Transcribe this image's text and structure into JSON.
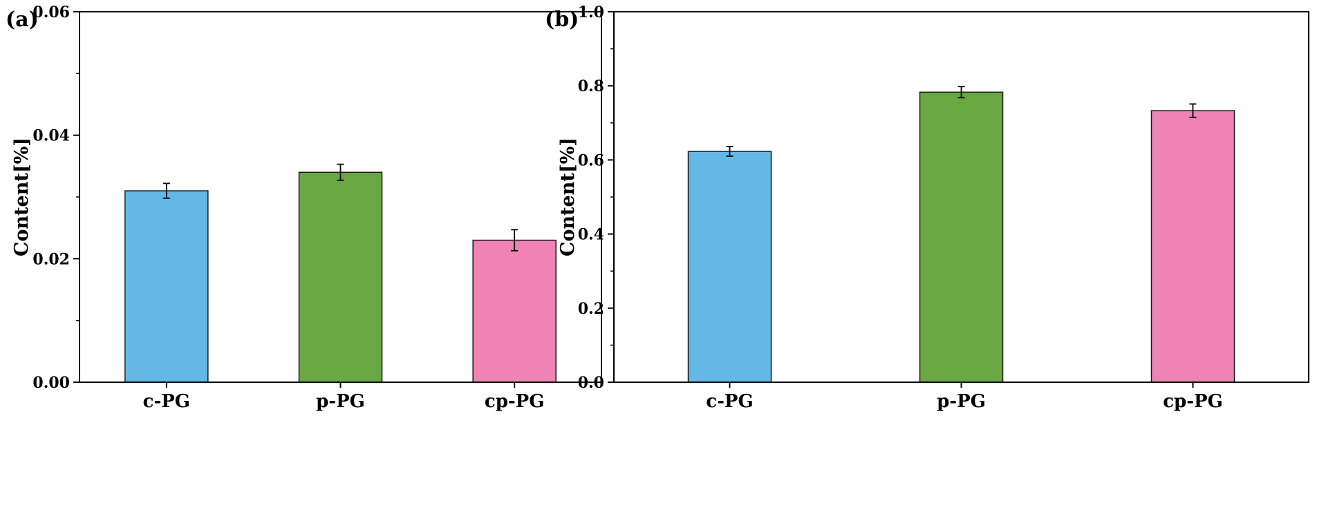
{
  "figure": {
    "panels": [
      "(a)",
      "(b)"
    ]
  },
  "chart_data": [
    {
      "type": "bar",
      "panel_label": "(a)",
      "categories": [
        "c-PG",
        "p-PG",
        "cp-PG"
      ],
      "values": [
        0.031,
        0.034,
        0.023
      ],
      "errors": [
        0.0012,
        0.0013,
        0.0017
      ],
      "colors": [
        "#63B8E6",
        "#6AA842",
        "#EF83B5"
      ],
      "ylabel": "Content[%]",
      "xlabel": "",
      "ylim": [
        0,
        0.06
      ],
      "yticks": [
        0.0,
        0.02,
        0.04,
        0.06
      ],
      "ytick_labels": [
        "0.00",
        "0.02",
        "0.04",
        "0.06"
      ],
      "minor_ticks_per_interval": 1,
      "grid": false
    },
    {
      "type": "bar",
      "panel_label": "(b)",
      "categories": [
        "c-PG",
        "p-PG",
        "cp-PG"
      ],
      "values": [
        0.623,
        0.783,
        0.733
      ],
      "errors": [
        0.013,
        0.015,
        0.018
      ],
      "colors": [
        "#63B8E6",
        "#6AA842",
        "#EF83B5"
      ],
      "ylabel": "Content[%]",
      "xlabel": "",
      "ylim": [
        0,
        1.0
      ],
      "yticks": [
        0.0,
        0.2,
        0.4,
        0.6,
        0.8,
        1.0
      ],
      "ytick_labels": [
        "0.0",
        "0.2",
        "0.4",
        "0.6",
        "0.8",
        "1.0"
      ],
      "minor_ticks_per_interval": 1,
      "grid": false
    }
  ]
}
